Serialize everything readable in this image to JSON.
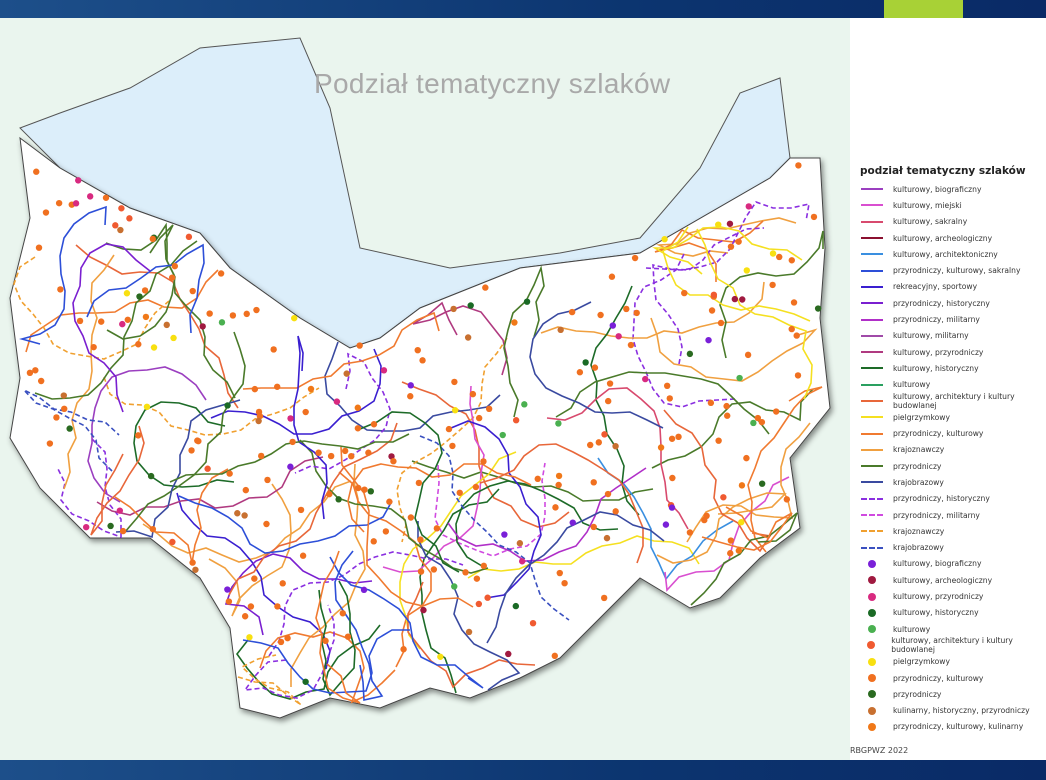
{
  "title": "Podział tematyczny szlaków",
  "legend": {
    "title": "podział tematyczny szlaków",
    "items": [
      {
        "kind": "line",
        "label": "kulturowy, biograficzny",
        "color": "#9b3fc0"
      },
      {
        "kind": "line",
        "label": "kulturowy, miejski",
        "color": "#d94fd0"
      },
      {
        "kind": "line",
        "label": "kulturowy, sakralny",
        "color": "#d84a6e"
      },
      {
        "kind": "line",
        "label": "kulturowy, archeologiczny",
        "color": "#8b1030"
      },
      {
        "kind": "line",
        "label": "kulturowy, architektoniczny",
        "color": "#3a8fe0"
      },
      {
        "kind": "line",
        "label": "przyrodniczy, kulturowy, sakralny",
        "color": "#2d4fd8"
      },
      {
        "kind": "line",
        "label": "rekreacyjny, sportowy",
        "color": "#3a1fd0"
      },
      {
        "kind": "line",
        "label": "przyrodniczy, historyczny",
        "color": "#7a1fd0"
      },
      {
        "kind": "line",
        "label": "przyrodniczy, militarny",
        "color": "#b02fc8"
      },
      {
        "kind": "line",
        "label": "kulturowy, militarny",
        "color": "#a04aa8"
      },
      {
        "kind": "line",
        "label": "kulturowy, przyrodniczy",
        "color": "#b03a80"
      },
      {
        "kind": "line",
        "label": "kulturowy, historyczny",
        "color": "#1d6b28"
      },
      {
        "kind": "line",
        "label": "kulturowy",
        "color": "#2aa060"
      },
      {
        "kind": "line",
        "label": "kulturowy, architektury i kultury budowlanej",
        "color": "#e8673a"
      },
      {
        "kind": "line",
        "label": "pielgrzymkowy",
        "color": "#f5e020"
      },
      {
        "kind": "line",
        "label": "przyrodniczy, kulturowy",
        "color": "#f07a30"
      },
      {
        "kind": "line",
        "label": "krajoznawczy",
        "color": "#f0a040"
      },
      {
        "kind": "line",
        "label": "przyrodniczy",
        "color": "#4a7a2a"
      },
      {
        "kind": "line",
        "label": "krajobrazowy",
        "color": "#3a4aa0"
      },
      {
        "kind": "dash",
        "label": "przyrodniczy, historyczny",
        "color": "#8a2fe0"
      },
      {
        "kind": "dash",
        "label": "przyrodniczy, militarny",
        "color": "#d04ae0"
      },
      {
        "kind": "dash",
        "label": "krajoznawczy",
        "color": "#f0a030"
      },
      {
        "kind": "dash",
        "label": "krajobrazowy",
        "color": "#3a50c0"
      },
      {
        "kind": "dot",
        "label": "kulturowy, biograficzny",
        "color": "#7a20d8"
      },
      {
        "kind": "dot",
        "label": "kulturowy, archeologiczny",
        "color": "#a01a40"
      },
      {
        "kind": "dot",
        "label": "kulturowy, przyrodniczy",
        "color": "#d82a80"
      },
      {
        "kind": "dot",
        "label": "kulturowy, historyczny",
        "color": "#1a6a25"
      },
      {
        "kind": "dot",
        "label": "kulturowy",
        "color": "#4ab050"
      },
      {
        "kind": "dot",
        "label": "kulturowy, architektury i kultury budowlanej",
        "color": "#f05a30"
      },
      {
        "kind": "dot",
        "label": "pielgrzymkowy",
        "color": "#f8e010"
      },
      {
        "kind": "dot",
        "label": "przyrodniczy, kulturowy",
        "color": "#f07020"
      },
      {
        "kind": "dot",
        "label": "przyrodniczy",
        "color": "#2a6a20"
      },
      {
        "kind": "dot",
        "label": "kulinarny, historyczny, przyrodniczy",
        "color": "#c87030"
      },
      {
        "kind": "dot",
        "label": "przyrodniczy, kulturowy, kulinarny",
        "color": "#f07818"
      }
    ]
  },
  "credit": "RBGPWZ 2022",
  "colors": {
    "top_bar": "#0c3570",
    "accent": "#a8d136",
    "sea": "#dceefa",
    "land": "#ffffff"
  }
}
